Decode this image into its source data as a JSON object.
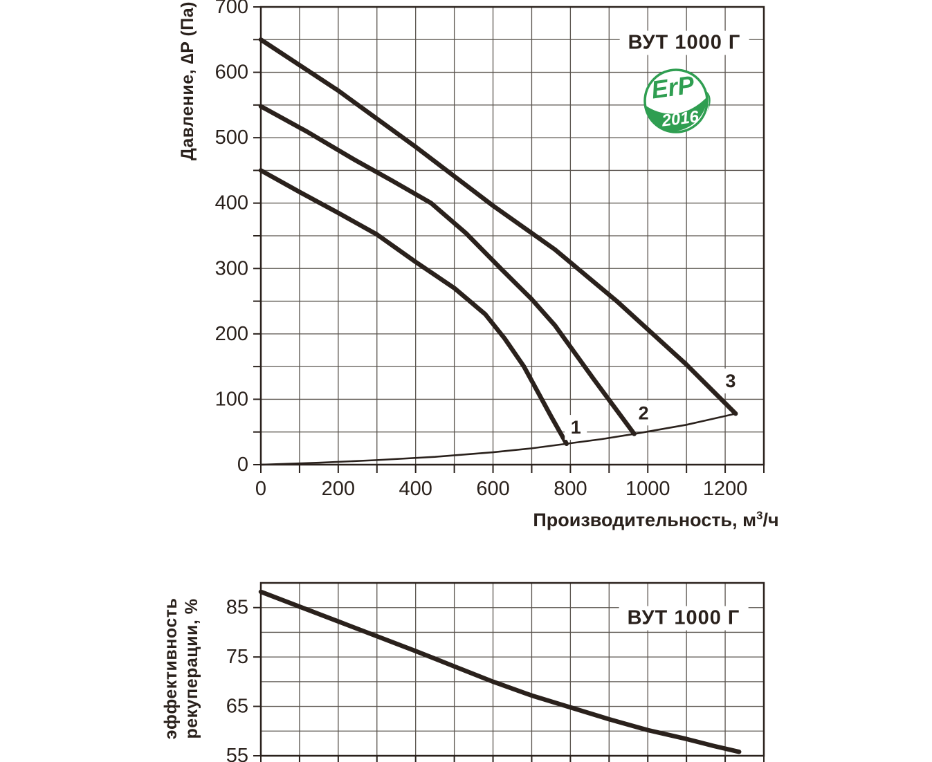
{
  "page": {
    "background": "#ffffff"
  },
  "colors": {
    "ink": "#2a211c",
    "grid": "#5a544e",
    "green": "#2f9e51",
    "white": "#ffffff"
  },
  "erp_badge": {
    "line1": "ErP",
    "line2": "2016"
  },
  "chart_data": [
    {
      "type": "line",
      "title": "ВУТ 1000 Г",
      "xlabel": "Производительность, м³/ч",
      "xlabel_parts": {
        "prefix": "Производительность,  м",
        "sup": "3",
        "suffix": "/ч"
      },
      "ylabel": "Давление, ∆P (Па)",
      "xlim": [
        0,
        1300
      ],
      "ylim": [
        0,
        700
      ],
      "grid": true,
      "legend": false,
      "x_grid_step": 100,
      "y_grid_step": 50,
      "x_tick_step": 100,
      "y_tick_step": 50,
      "x_major_ticks": [
        0,
        200,
        400,
        600,
        800,
        1000,
        1200
      ],
      "y_major_ticks": [
        0,
        100,
        200,
        300,
        400,
        500,
        600,
        700
      ],
      "series": [
        {
          "name": "speed-1",
          "thin": false,
          "points": [
            [
              0,
              450
            ],
            [
              100,
              417
            ],
            [
              200,
              385
            ],
            [
              300,
              352
            ],
            [
              400,
              310
            ],
            [
              500,
              270
            ],
            [
              580,
              230
            ],
            [
              630,
              193
            ],
            [
              680,
              150
            ],
            [
              715,
              112
            ],
            [
              750,
              74
            ],
            [
              790,
              32
            ]
          ]
        },
        {
          "name": "speed-2",
          "thin": false,
          "points": [
            [
              0,
              548
            ],
            [
              120,
              509
            ],
            [
              240,
              467
            ],
            [
              340,
              434
            ],
            [
              440,
              400
            ],
            [
              530,
              354
            ],
            [
              620,
              300
            ],
            [
              700,
              253
            ],
            [
              760,
              213
            ],
            [
              860,
              131
            ],
            [
              965,
              47
            ]
          ]
        },
        {
          "name": "speed-3",
          "thin": false,
          "points": [
            [
              0,
              650
            ],
            [
              200,
              572
            ],
            [
              400,
              486
            ],
            [
              600,
              396
            ],
            [
              760,
              329
            ],
            [
              920,
              250
            ],
            [
              1100,
              153
            ],
            [
              1227,
              78
            ]
          ]
        },
        {
          "name": "system-resistance",
          "thin": true,
          "points": [
            [
              0,
              0
            ],
            [
              150,
              3
            ],
            [
              300,
              7
            ],
            [
              450,
              12
            ],
            [
              600,
              19
            ],
            [
              700,
              25
            ],
            [
              790,
              32
            ],
            [
              880,
              39
            ],
            [
              965,
              47
            ],
            [
              1100,
              61
            ],
            [
              1227,
              78
            ]
          ]
        }
      ],
      "annotations": [
        {
          "label": "1",
          "x": 814,
          "y": 57
        },
        {
          "label": "2",
          "x": 989,
          "y": 79
        },
        {
          "label": "3",
          "x": 1214,
          "y": 128
        }
      ]
    },
    {
      "type": "line",
      "title": "ВУТ 1000 Г",
      "xlabel": "",
      "ylabel": "эффективность рекуперации, %",
      "ylabel_lines": [
        "эффективность",
        "рекуперации, %"
      ],
      "xlim": [
        0,
        1300
      ],
      "ylim": [
        55,
        90
      ],
      "grid": true,
      "legend": false,
      "x_grid_step": 100,
      "y_grid_step": 5,
      "x_tick_step": 100,
      "y_tick_step": 10,
      "x_major_ticks": [],
      "y_major_ticks": [
        55,
        65,
        75,
        85
      ],
      "series": [
        {
          "name": "recuperation-efficiency",
          "thin": false,
          "points": [
            [
              0,
              88.2
            ],
            [
              100,
              85.2
            ],
            [
              200,
              82.2
            ],
            [
              300,
              79.2
            ],
            [
              400,
              76.2
            ],
            [
              500,
              73.1
            ],
            [
              600,
              70
            ],
            [
              700,
              67.2
            ],
            [
              800,
              64.8
            ],
            [
              900,
              62.4
            ],
            [
              1000,
              60.2
            ],
            [
              1100,
              58.4
            ],
            [
              1170,
              57
            ],
            [
              1236,
              55.8
            ]
          ]
        }
      ],
      "annotations": []
    }
  ]
}
